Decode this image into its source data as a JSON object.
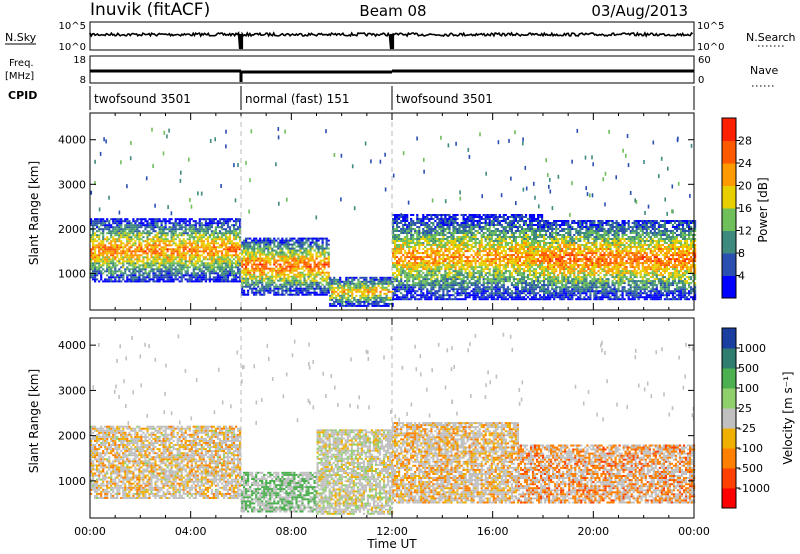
{
  "header": {
    "station": "Inuvik (fitACF)",
    "beam": "Beam 08",
    "date": "03/Aug/2013"
  },
  "strip": {
    "nsky_label": "N.Sky",
    "nsearch_label": "N.Search",
    "noise_ticks_left": [
      "10^5",
      "10^0"
    ],
    "noise_ticks_right": [
      "10^5",
      "10^0"
    ],
    "freq_label_1": "Freq.",
    "freq_label_2": "[MHz]",
    "freq_ticks": [
      "18",
      "8"
    ],
    "nave_label": "Nave",
    "nave_ticks": [
      "60",
      "0"
    ],
    "cpid_label": "CPID",
    "cpid_segments": [
      {
        "label": "twofsound 3501",
        "start_h": 0,
        "end_h": 6
      },
      {
        "label": "normal (fast) 151",
        "start_h": 6,
        "end_h": 12
      },
      {
        "label": "twofsound 3501",
        "start_h": 12,
        "end_h": 24
      }
    ]
  },
  "chart_data": [
    {
      "type": "heatmap",
      "title": "Power",
      "ylabel": "Slant Range [km]",
      "xlim_hours": [
        0,
        24
      ],
      "ylim": [
        180,
        4600
      ],
      "y_ticks": [
        "1000",
        "2000",
        "3000",
        "4000"
      ],
      "colorbar": {
        "label": "Power [dB]",
        "ticks": [
          "4",
          "8",
          "12",
          "16",
          "20",
          "24",
          "28"
        ],
        "colors": [
          "#0000ff",
          "#2a4fb0",
          "#3f8a7e",
          "#6fbf5a",
          "#e8d000",
          "#ff9a00",
          "#ff5a00",
          "#ff2000"
        ]
      },
      "echo_bands": [
        {
          "start_h": 0.0,
          "end_h": 6.0,
          "low_km": 800,
          "high_km": 2200,
          "level": 0.8
        },
        {
          "start_h": 6.0,
          "end_h": 9.5,
          "low_km": 500,
          "high_km": 1800,
          "level": 0.85
        },
        {
          "start_h": 9.5,
          "end_h": 12.0,
          "low_km": 250,
          "high_km": 900,
          "level": 0.7
        },
        {
          "start_h": 12.0,
          "end_h": 18.0,
          "low_km": 400,
          "high_km": 2300,
          "level": 0.75
        },
        {
          "start_h": 18.0,
          "end_h": 24.0,
          "low_km": 400,
          "high_km": 2200,
          "level": 0.85
        }
      ]
    },
    {
      "type": "heatmap",
      "title": "Velocity",
      "ylabel": "Slant Range [km]",
      "xlabel": "Time UT",
      "xlim_hours": [
        0,
        24
      ],
      "ylim": [
        180,
        4600
      ],
      "x_ticks": [
        "00:00",
        "04:00",
        "08:00",
        "12:00",
        "16:00",
        "20:00",
        "00:00"
      ],
      "y_ticks": [
        "1000",
        "2000",
        "3000",
        "4000"
      ],
      "colorbar": {
        "label": "Velocity [m s⁻¹]",
        "ticks": [
          "1000",
          "500",
          "100",
          "25",
          "-25",
          "-100",
          "-500",
          "-1000"
        ],
        "colors": [
          "#1a3fa0",
          "#2f7d6f",
          "#4caf50",
          "#8fd06a",
          "#c0c0c0",
          "#f0b000",
          "#ff8000",
          "#ff4000",
          "#ff0000"
        ]
      },
      "echo_bands": [
        {
          "start_h": 0.0,
          "end_h": 6.0,
          "low_km": 600,
          "high_km": 2200,
          "velocity": -60
        },
        {
          "start_h": 6.0,
          "end_h": 9.0,
          "low_km": 300,
          "high_km": 1200,
          "velocity": 300
        },
        {
          "start_h": 9.0,
          "end_h": 12.0,
          "low_km": 250,
          "high_km": 2100,
          "velocity": 0
        },
        {
          "start_h": 12.0,
          "end_h": 17.0,
          "low_km": 500,
          "high_km": 2300,
          "velocity": -80
        },
        {
          "start_h": 17.0,
          "end_h": 24.0,
          "low_km": 500,
          "high_km": 1800,
          "velocity": -450
        }
      ]
    }
  ]
}
